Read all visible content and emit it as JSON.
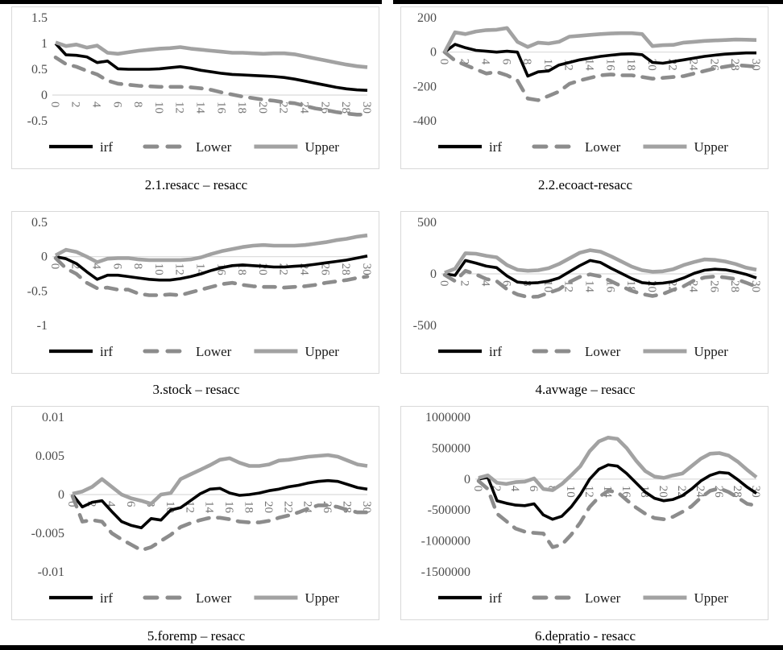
{
  "styles": {
    "irf_color": "#000000",
    "lower_color": "#8c8c8c",
    "upper_color": "#a2a2a2",
    "gridline_color": "#d9d9d9",
    "panel_border_color": "#d9d9d9",
    "table_rule_color": "#000000",
    "y_tick_text_color": "#4d4d4d",
    "x_tick_text_color": "#757575"
  },
  "chart_data": [
    {
      "type": "line",
      "caption": "2.1.resacc – resacc",
      "ylim": [
        -0.5,
        1.5
      ],
      "yticks": [
        "1.5",
        "1",
        "0.5",
        "0",
        "-0.5"
      ],
      "x_range": [
        0,
        30
      ],
      "x_ticks": [
        0,
        2,
        4,
        6,
        8,
        10,
        12,
        14,
        16,
        18,
        20,
        22,
        24,
        26,
        28,
        30
      ],
      "legend": [
        "irf",
        "Lower",
        "Upper"
      ],
      "series": [
        {
          "name": "irf",
          "values": [
            1.0,
            0.78,
            0.77,
            0.74,
            0.63,
            0.66,
            0.51,
            0.5,
            0.5,
            0.5,
            0.51,
            0.53,
            0.55,
            0.52,
            0.48,
            0.45,
            0.42,
            0.4,
            0.39,
            0.38,
            0.37,
            0.36,
            0.34,
            0.31,
            0.27,
            0.23,
            0.19,
            0.15,
            0.12,
            0.1,
            0.09
          ]
        },
        {
          "name": "Lower",
          "values": [
            0.73,
            0.6,
            0.55,
            0.47,
            0.4,
            0.28,
            0.22,
            0.2,
            0.18,
            0.17,
            0.16,
            0.16,
            0.16,
            0.15,
            0.13,
            0.1,
            0.05,
            0.01,
            -0.03,
            -0.06,
            -0.09,
            -0.11,
            -0.14,
            -0.16,
            -0.21,
            -0.26,
            -0.29,
            -0.33,
            -0.36,
            -0.38,
            -0.38
          ]
        },
        {
          "name": "Upper",
          "values": [
            1.02,
            0.95,
            0.98,
            0.92,
            0.96,
            0.82,
            0.8,
            0.83,
            0.86,
            0.88,
            0.9,
            0.91,
            0.93,
            0.9,
            0.88,
            0.86,
            0.84,
            0.82,
            0.82,
            0.81,
            0.8,
            0.81,
            0.81,
            0.79,
            0.75,
            0.71,
            0.67,
            0.63,
            0.59,
            0.56,
            0.54
          ]
        }
      ]
    },
    {
      "type": "line",
      "caption": "2.2.ecoact-resacc",
      "ylim": [
        -400,
        200
      ],
      "yticks": [
        "200",
        "0",
        "-200",
        "-400"
      ],
      "x_range": [
        0,
        30
      ],
      "x_ticks": [
        0,
        2,
        4,
        6,
        8,
        10,
        12,
        14,
        16,
        18,
        20,
        22,
        24,
        26,
        28,
        30
      ],
      "legend": [
        "irf",
        "Lower",
        "Upper"
      ],
      "series": [
        {
          "name": "irf",
          "values": [
            0,
            45,
            25,
            10,
            5,
            0,
            5,
            0,
            -140,
            -115,
            -110,
            -75,
            -60,
            -45,
            -35,
            -25,
            -18,
            -12,
            -10,
            -15,
            -60,
            -65,
            -55,
            -45,
            -35,
            -25,
            -18,
            -12,
            -8,
            -5,
            -5
          ]
        },
        {
          "name": "Lower",
          "values": [
            0,
            -50,
            -75,
            -100,
            -125,
            -115,
            -135,
            -165,
            -270,
            -280,
            -255,
            -230,
            -185,
            -165,
            -150,
            -135,
            -130,
            -135,
            -135,
            -145,
            -155,
            -150,
            -145,
            -140,
            -125,
            -110,
            -95,
            -85,
            -75,
            -80,
            -85
          ]
        },
        {
          "name": "Upper",
          "values": [
            0,
            115,
            105,
            120,
            128,
            130,
            140,
            60,
            30,
            55,
            50,
            60,
            90,
            95,
            100,
            105,
            108,
            110,
            110,
            105,
            35,
            40,
            42,
            55,
            60,
            65,
            68,
            70,
            73,
            72,
            70
          ]
        }
      ]
    },
    {
      "type": "line",
      "caption": "3.stock – resacc",
      "ylim": [
        -1,
        0.5
      ],
      "yticks": [
        "0.5",
        "0",
        "-0.5",
        "-1"
      ],
      "x_range": [
        0,
        30
      ],
      "x_ticks": [
        0,
        2,
        4,
        6,
        8,
        10,
        12,
        14,
        16,
        18,
        20,
        22,
        24,
        26,
        28,
        30
      ],
      "legend": [
        "irf",
        "Lower",
        "Upper"
      ],
      "series": [
        {
          "name": "irf",
          "values": [
            0,
            -0.03,
            -0.1,
            -0.22,
            -0.33,
            -0.27,
            -0.27,
            -0.29,
            -0.31,
            -0.33,
            -0.34,
            -0.34,
            -0.32,
            -0.29,
            -0.25,
            -0.2,
            -0.16,
            -0.13,
            -0.12,
            -0.13,
            -0.14,
            -0.15,
            -0.15,
            -0.14,
            -0.13,
            -0.11,
            -0.09,
            -0.07,
            -0.05,
            -0.02,
            0.01
          ]
        },
        {
          "name": "Lower",
          "values": [
            -0.02,
            -0.17,
            -0.25,
            -0.38,
            -0.46,
            -0.45,
            -0.48,
            -0.48,
            -0.54,
            -0.56,
            -0.56,
            -0.55,
            -0.56,
            -0.52,
            -0.48,
            -0.44,
            -0.4,
            -0.38,
            -0.41,
            -0.43,
            -0.44,
            -0.44,
            -0.45,
            -0.44,
            -0.43,
            -0.41,
            -0.38,
            -0.36,
            -0.34,
            -0.31,
            -0.29
          ]
        },
        {
          "name": "Upper",
          "values": [
            0.02,
            0.1,
            0.07,
            0.0,
            -0.08,
            -0.03,
            -0.02,
            -0.02,
            -0.04,
            -0.05,
            -0.05,
            -0.05,
            -0.05,
            -0.04,
            -0.01,
            0.04,
            0.08,
            0.11,
            0.14,
            0.16,
            0.17,
            0.16,
            0.16,
            0.16,
            0.17,
            0.19,
            0.21,
            0.24,
            0.26,
            0.29,
            0.31
          ]
        }
      ]
    },
    {
      "type": "line",
      "caption": "4.avwage – resacc",
      "ylim": [
        -500,
        500
      ],
      "yticks": [
        "500",
        "0",
        "-500"
      ],
      "x_range": [
        0,
        30
      ],
      "x_ticks": [
        0,
        2,
        4,
        6,
        8,
        10,
        12,
        14,
        16,
        18,
        20,
        22,
        24,
        26,
        28,
        30
      ],
      "legend": [
        "irf",
        "Lower",
        "Upper"
      ],
      "series": [
        {
          "name": "irf",
          "values": [
            0,
            -15,
            130,
            105,
            75,
            60,
            -20,
            -80,
            -90,
            -85,
            -70,
            -40,
            20,
            80,
            130,
            110,
            55,
            5,
            -45,
            -85,
            -95,
            -90,
            -75,
            -40,
            5,
            35,
            45,
            40,
            20,
            -5,
            -40
          ]
        },
        {
          "name": "Lower",
          "values": [
            -10,
            -70,
            30,
            -5,
            -50,
            -70,
            -150,
            -200,
            -225,
            -220,
            -185,
            -150,
            -80,
            -30,
            -5,
            -25,
            -70,
            -120,
            -165,
            -195,
            -215,
            -195,
            -155,
            -120,
            -65,
            -35,
            -25,
            -35,
            -50,
            -85,
            -125
          ]
        },
        {
          "name": "Upper",
          "values": [
            10,
            50,
            200,
            195,
            175,
            160,
            85,
            40,
            30,
            35,
            55,
            95,
            150,
            205,
            230,
            215,
            170,
            120,
            70,
            35,
            20,
            25,
            45,
            85,
            115,
            140,
            135,
            120,
            95,
            60,
            40
          ]
        }
      ]
    },
    {
      "type": "line",
      "caption": "5.foremp – resacc",
      "ylim": [
        -0.01,
        0.01
      ],
      "yticks": [
        "0.01",
        "0.005",
        "0",
        "-0.005",
        "-0.01"
      ],
      "x_range": [
        0,
        30
      ],
      "x_ticks": [
        0,
        2,
        4,
        6,
        8,
        10,
        12,
        14,
        16,
        18,
        20,
        22,
        24,
        26,
        28,
        30
      ],
      "legend": [
        "irf",
        "Lower",
        "Upper"
      ],
      "series": [
        {
          "name": "irf",
          "values": [
            0,
            -0.0016,
            -0.001,
            -0.0008,
            -0.0022,
            -0.0035,
            -0.004,
            -0.0043,
            -0.0031,
            -0.0033,
            -0.002,
            -0.0017,
            -0.0008,
            0.0001,
            0.0007,
            0.0008,
            0.0002,
            -0.0001,
            0.0,
            0.0002,
            0.0005,
            0.0007,
            0.001,
            0.0012,
            0.0015,
            0.0017,
            0.0018,
            0.0017,
            0.0013,
            0.0009,
            0.0007
          ]
        },
        {
          "name": "Lower",
          "values": [
            -0.0002,
            -0.0035,
            -0.0033,
            -0.0035,
            -0.005,
            -0.0058,
            -0.0065,
            -0.0072,
            -0.0068,
            -0.006,
            -0.0052,
            -0.0042,
            -0.0037,
            -0.0033,
            -0.003,
            -0.003,
            -0.0032,
            -0.0035,
            -0.0036,
            -0.0036,
            -0.0034,
            -0.003,
            -0.0027,
            -0.0023,
            -0.0018,
            -0.0014,
            -0.0014,
            -0.0016,
            -0.002,
            -0.0023,
            -0.0023
          ]
        },
        {
          "name": "Upper",
          "values": [
            0.0001,
            0.0004,
            0.001,
            0.002,
            0.001,
            0.0,
            -0.0005,
            -0.0008,
            -0.0012,
            0.0,
            0.0002,
            0.002,
            0.0026,
            0.0032,
            0.0038,
            0.0045,
            0.0047,
            0.0041,
            0.0037,
            0.0037,
            0.0039,
            0.0044,
            0.0045,
            0.0047,
            0.0049,
            0.005,
            0.0051,
            0.0049,
            0.0044,
            0.0039,
            0.0037
          ]
        }
      ]
    },
    {
      "type": "line",
      "caption": "6.depratio - resacc",
      "ylim": [
        -1500000,
        1000000
      ],
      "yticks": [
        "1000000",
        "500000",
        "0",
        "-500000",
        "-1000000",
        "-1500000"
      ],
      "x_range": [
        0,
        30
      ],
      "x_ticks": [
        0,
        2,
        4,
        6,
        8,
        10,
        12,
        14,
        16,
        18,
        20,
        22,
        24,
        26,
        28,
        30
      ],
      "legend": [
        "irf",
        "Lower",
        "Upper"
      ],
      "series": [
        {
          "name": "irf",
          "values": [
            0,
            30000,
            -350000,
            -390000,
            -420000,
            -430000,
            -400000,
            -580000,
            -650000,
            -600000,
            -450000,
            -250000,
            0,
            160000,
            230000,
            210000,
            90000,
            -60000,
            -210000,
            -310000,
            -350000,
            -330000,
            -270000,
            -160000,
            -30000,
            60000,
            110000,
            95000,
            -10000,
            -130000,
            -230000
          ]
        },
        {
          "name": "Lower",
          "values": [
            -30000,
            -160000,
            -560000,
            -680000,
            -800000,
            -850000,
            -870000,
            -880000,
            -1100000,
            -1060000,
            -900000,
            -700000,
            -450000,
            -290000,
            -190000,
            -210000,
            -340000,
            -460000,
            -560000,
            -630000,
            -650000,
            -610000,
            -530000,
            -440000,
            -300000,
            -190000,
            -150000,
            -210000,
            -300000,
            -400000,
            -430000
          ]
        },
        {
          "name": "Upper",
          "values": [
            20000,
            60000,
            -60000,
            -80000,
            -50000,
            -40000,
            10000,
            -160000,
            -180000,
            -80000,
            60000,
            210000,
            450000,
            610000,
            670000,
            650000,
            500000,
            300000,
            130000,
            40000,
            20000,
            60000,
            90000,
            210000,
            330000,
            410000,
            420000,
            380000,
            280000,
            150000,
            30000
          ]
        }
      ]
    }
  ]
}
